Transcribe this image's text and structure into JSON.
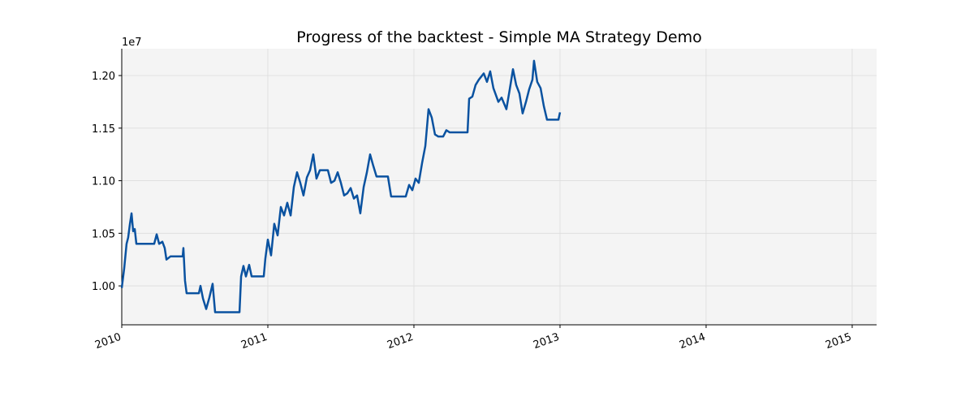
{
  "chart_data": {
    "type": "line",
    "title": "Progress of the backtest - Simple MA Strategy Demo",
    "y_offset_label": "1e7",
    "x": [
      2010.0,
      2010.017,
      2010.033,
      2010.044,
      2010.056,
      2010.067,
      2010.078,
      2010.089,
      2010.1,
      2010.222,
      2010.239,
      2010.256,
      2010.278,
      2010.294,
      2010.306,
      2010.333,
      2010.417,
      2010.422,
      2010.433,
      2010.444,
      2010.528,
      2010.539,
      2010.556,
      2010.578,
      2010.6,
      2010.622,
      2010.639,
      2010.806,
      2010.817,
      2010.833,
      2010.85,
      2010.872,
      2010.889,
      2010.972,
      2010.983,
      2011.0,
      2011.022,
      2011.044,
      2011.067,
      2011.089,
      2011.111,
      2011.133,
      2011.156,
      2011.178,
      2011.2,
      2011.222,
      2011.244,
      2011.267,
      2011.289,
      2011.311,
      2011.333,
      2011.356,
      2011.411,
      2011.433,
      2011.456,
      2011.478,
      2011.5,
      2011.522,
      2011.544,
      2011.567,
      2011.589,
      2011.611,
      2011.633,
      2011.656,
      2011.678,
      2011.7,
      2011.722,
      2011.744,
      2011.822,
      2011.844,
      2011.944,
      2011.967,
      2011.989,
      2012.011,
      2012.033,
      2012.056,
      2012.078,
      2012.1,
      2012.122,
      2012.144,
      2012.167,
      2012.2,
      2012.222,
      2012.244,
      2012.367,
      2012.378,
      2012.4,
      2012.422,
      2012.444,
      2012.478,
      2012.5,
      2012.522,
      2012.544,
      2012.578,
      2012.6,
      2012.633,
      2012.656,
      2012.678,
      2012.7,
      2012.722,
      2012.744,
      2012.767,
      2012.789,
      2012.811,
      2012.822,
      2012.844,
      2012.867,
      2012.889,
      2012.911,
      2012.989,
      2013.0
    ],
    "series": [
      {
        "color": "#0a52a0",
        "values": [
          0.998,
          1.017,
          1.04,
          1.046,
          1.059,
          1.069,
          1.052,
          1.054,
          1.04,
          1.04,
          1.049,
          1.04,
          1.042,
          1.036,
          1.025,
          1.028,
          1.028,
          1.036,
          1.005,
          0.993,
          0.993,
          1.0,
          0.988,
          0.978,
          0.989,
          1.002,
          0.975,
          0.975,
          1.009,
          1.019,
          1.009,
          1.02,
          1.009,
          1.009,
          1.026,
          1.044,
          1.029,
          1.059,
          1.048,
          1.075,
          1.067,
          1.079,
          1.067,
          1.094,
          1.108,
          1.098,
          1.086,
          1.103,
          1.11,
          1.125,
          1.102,
          1.11,
          1.11,
          1.098,
          1.1,
          1.108,
          1.098,
          1.086,
          1.088,
          1.093,
          1.083,
          1.086,
          1.069,
          1.094,
          1.108,
          1.125,
          1.114,
          1.104,
          1.104,
          1.085,
          1.085,
          1.096,
          1.091,
          1.102,
          1.098,
          1.117,
          1.133,
          1.168,
          1.16,
          1.144,
          1.142,
          1.142,
          1.148,
          1.146,
          1.146,
          1.178,
          1.18,
          1.191,
          1.196,
          1.202,
          1.194,
          1.204,
          1.188,
          1.175,
          1.179,
          1.168,
          1.187,
          1.206,
          1.191,
          1.183,
          1.164,
          1.175,
          1.187,
          1.196,
          1.214,
          1.194,
          1.188,
          1.171,
          1.158,
          1.158,
          1.165
        ]
      }
    ],
    "xlim": [
      2010,
      2015.167
    ],
    "xticks": [
      2010,
      2011,
      2012,
      2013,
      2014,
      2015
    ],
    "ylim": [
      0.963,
      1.2255
    ],
    "yticks": [
      {
        "value": 1,
        "label": "1.00"
      },
      {
        "value": 1.05,
        "label": "1.05"
      },
      {
        "value": 1.1,
        "label": "1.10"
      },
      {
        "value": 1.15,
        "label": "1.15"
      },
      {
        "value": 1.2,
        "label": "1.20"
      }
    ],
    "grid": true
  }
}
